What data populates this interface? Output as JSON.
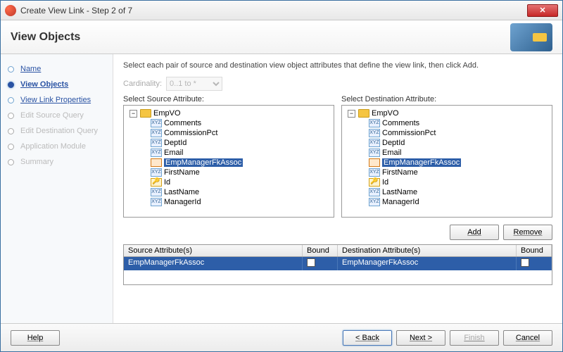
{
  "window": {
    "title": "Create View Link - Step 2 of 7",
    "close_glyph": "✕"
  },
  "header": {
    "title": "View Objects"
  },
  "steps": [
    {
      "label": "Name",
      "state": "done"
    },
    {
      "label": "View Objects",
      "state": "current"
    },
    {
      "label": "View Link Properties",
      "state": "done"
    },
    {
      "label": "Edit Source Query",
      "state": "disabled"
    },
    {
      "label": "Edit Destination Query",
      "state": "disabled"
    },
    {
      "label": "Application Module",
      "state": "disabled"
    },
    {
      "label": "Summary",
      "state": "disabled"
    }
  ],
  "instruction": "Select each pair of source and destination view object attributes that define the view link, then click Add.",
  "cardinality": {
    "label": "Cardinality:",
    "value": "0..1 to *"
  },
  "source": {
    "label": "Select Source Attribute:",
    "root": "EmpVO",
    "items": [
      {
        "label": "Comments",
        "icon": "xyz"
      },
      {
        "label": "CommissionPct",
        "icon": "xyz"
      },
      {
        "label": "DeptId",
        "icon": "xyz"
      },
      {
        "label": "Email",
        "icon": "xyz"
      },
      {
        "label": "EmpManagerFkAssoc",
        "icon": "assoc",
        "selected": true
      },
      {
        "label": "FirstName",
        "icon": "xyz"
      },
      {
        "label": "Id",
        "icon": "key"
      },
      {
        "label": "LastName",
        "icon": "xyz"
      },
      {
        "label": "ManagerId",
        "icon": "xyz"
      }
    ]
  },
  "destination": {
    "label": "Select Destination Attribute:",
    "root": "EmpVO",
    "items": [
      {
        "label": "Comments",
        "icon": "xyz"
      },
      {
        "label": "CommissionPct",
        "icon": "xyz"
      },
      {
        "label": "DeptId",
        "icon": "xyz"
      },
      {
        "label": "Email",
        "icon": "xyz"
      },
      {
        "label": "EmpManagerFkAssoc",
        "icon": "assoc",
        "selected": true
      },
      {
        "label": "FirstName",
        "icon": "xyz"
      },
      {
        "label": "Id",
        "icon": "key"
      },
      {
        "label": "LastName",
        "icon": "xyz"
      },
      {
        "label": "ManagerId",
        "icon": "xyz"
      }
    ]
  },
  "buttons": {
    "add": "Add",
    "remove": "Remove"
  },
  "table": {
    "headers": {
      "src": "Source Attribute(s)",
      "b1": "Bound",
      "dst": "Destination Attribute(s)",
      "b2": "Bound"
    },
    "row": {
      "src": "EmpManagerFkAssoc",
      "dst": "EmpManagerFkAssoc"
    }
  },
  "footer": {
    "help": "Help",
    "back": "< Back",
    "next": "Next >",
    "finish": "Finish",
    "cancel": "Cancel"
  },
  "colors": {
    "selection": "#2d5ea8",
    "link": "#2952a3"
  }
}
